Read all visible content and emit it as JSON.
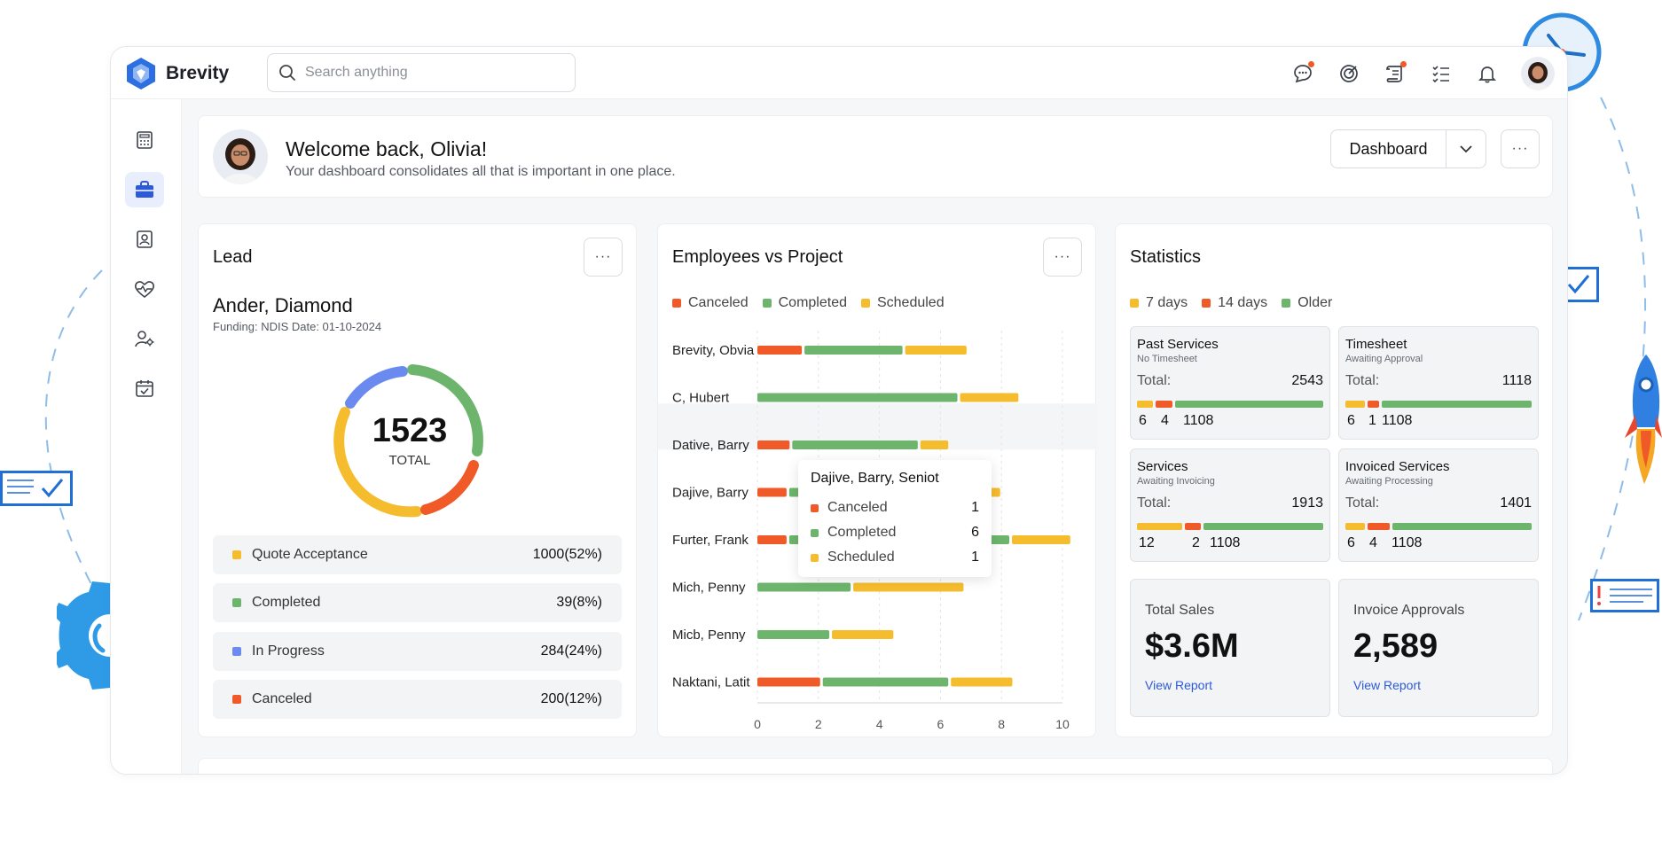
{
  "brand": {
    "name": "Brevity"
  },
  "search": {
    "placeholder": "Search anything"
  },
  "welcome": {
    "title": "Welcome back, Olivia!",
    "subtitle": "Your dashboard consolidates all that is important in one place.",
    "view_select": "Dashboard"
  },
  "lead": {
    "title": "Lead",
    "name": "Ander, Diamond",
    "meta": "Funding: NDIS Date: 01-10-2024",
    "total_value": "1523",
    "total_label": "TOTAL",
    "rows": [
      {
        "label": "Quote Acceptance",
        "value": "1000(52%)",
        "color": "#f5bd2e"
      },
      {
        "label": "Completed",
        "value": "39(8%)",
        "color": "#6db56d"
      },
      {
        "label": "In Progress",
        "value": "284(24%)",
        "color": "#6b8af0"
      },
      {
        "label": "Canceled",
        "value": "200(12%)",
        "color": "#f05a28"
      }
    ]
  },
  "employees": {
    "title": "Employees vs Project",
    "legend": [
      "Canceled",
      "Completed",
      "Scheduled"
    ],
    "tooltip": {
      "title": "Dajive, Barry, Seniot",
      "rows": [
        {
          "label": "Canceled",
          "value": "1"
        },
        {
          "label": "Completed",
          "value": "6"
        },
        {
          "label": "Scheduled",
          "value": "1"
        }
      ]
    }
  },
  "chart_data": {
    "type": "bar",
    "orientation": "horizontal",
    "stacked": true,
    "title": "Employees vs Project",
    "categories": [
      "Brevity, Obvia",
      "C, Hubert",
      "Dative, Barry",
      "Dajive, Barry",
      "Furter, Frank",
      "Mich, Penny",
      "Micb, Penny",
      "Naktani, Latit"
    ],
    "series": [
      {
        "name": "Canceled",
        "color": "#f05a28",
        "values": [
          1.5,
          0,
          1.1,
          1,
          1,
          0,
          0,
          2.1
        ]
      },
      {
        "name": "Completed",
        "color": "#6db56d",
        "values": [
          3.3,
          6.6,
          4.2,
          6,
          7.3,
          3.1,
          2.4,
          4.2
        ]
      },
      {
        "name": "Scheduled",
        "color": "#f5bd2e",
        "values": [
          2.1,
          2.0,
          1.0,
          1,
          2.0,
          3.7,
          2.1,
          2.1
        ]
      }
    ],
    "xticks": [
      "0",
      "2",
      "4",
      "6",
      "8",
      "10"
    ],
    "xlim": [
      0,
      10
    ],
    "grid": true,
    "highlight_row": 2
  },
  "stats": {
    "title": "Statistics",
    "legend": [
      "7 days",
      "14 days",
      "Older"
    ],
    "boxes": [
      {
        "title": "Past Services",
        "sub": "No Timesheet",
        "total_label": "Total:",
        "total": "2543",
        "n1": "6",
        "n2": "4",
        "n3": "1108",
        "fracs": [
          0.09,
          0.09,
          0.82
        ]
      },
      {
        "title": "Timesheet",
        "sub": "Awaiting Approval",
        "total_label": "Total:",
        "total": "1118",
        "n1": "6",
        "n2": "1",
        "n3": "1108",
        "fracs": [
          0.11,
          0.06,
          0.83
        ]
      },
      {
        "title": "Services",
        "sub": "Awaiting Invoicing",
        "total_label": "Total:",
        "total": "1913",
        "n1": "12",
        "n2": "2",
        "n3": "1108",
        "fracs": [
          0.25,
          0.09,
          0.66
        ]
      },
      {
        "title": "Invoiced Services",
        "sub": "Awaiting Processing",
        "total_label": "Total:",
        "total": "1401",
        "n1": "6",
        "n2": "4",
        "n3": "1108",
        "fracs": [
          0.11,
          0.12,
          0.77
        ]
      }
    ],
    "sales": {
      "title": "Total Sales",
      "value": "$3.6M",
      "link": "View Report"
    },
    "approvals": {
      "title": "Invoice Approvals",
      "value": "2,589",
      "link": "View Report"
    }
  },
  "colors": {
    "accent": "#2d5ad6",
    "canceled": "#f05a28",
    "completed": "#6db56d",
    "scheduled": "#f5bd2e",
    "progress": "#6b8af0"
  }
}
